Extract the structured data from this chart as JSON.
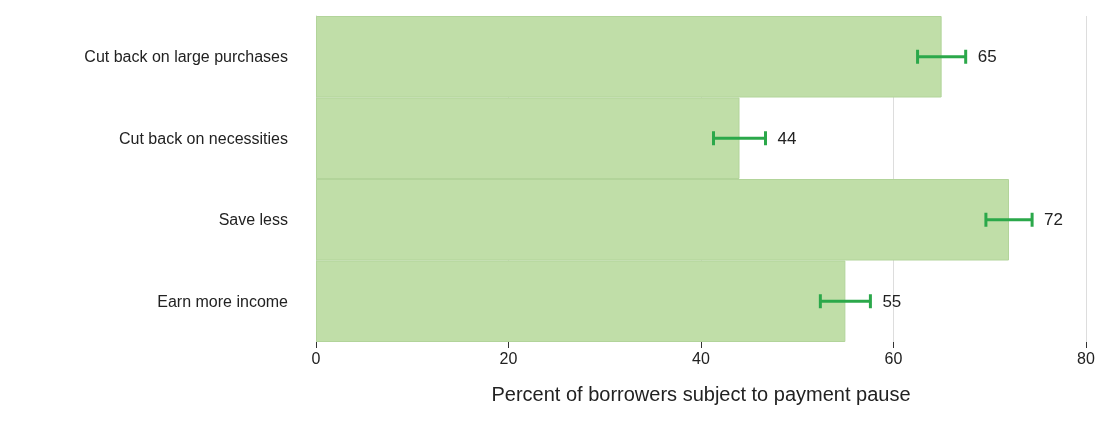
{
  "chart_data": {
    "type": "bar",
    "orientation": "horizontal",
    "categories": [
      "Cut back on large purchases",
      "Cut back on necessities",
      "Save less",
      "Earn more income"
    ],
    "values": [
      65,
      44,
      72,
      55
    ],
    "errors": [
      2.5,
      2.7,
      2.4,
      2.6
    ],
    "color": "#c0dea8",
    "data_labels": true,
    "xlabel": "Percent of borrowers subject to payment pause",
    "xlim": [
      0,
      80
    ],
    "xticks": [
      0,
      20,
      40,
      60,
      80
    ],
    "grid": "x"
  }
}
